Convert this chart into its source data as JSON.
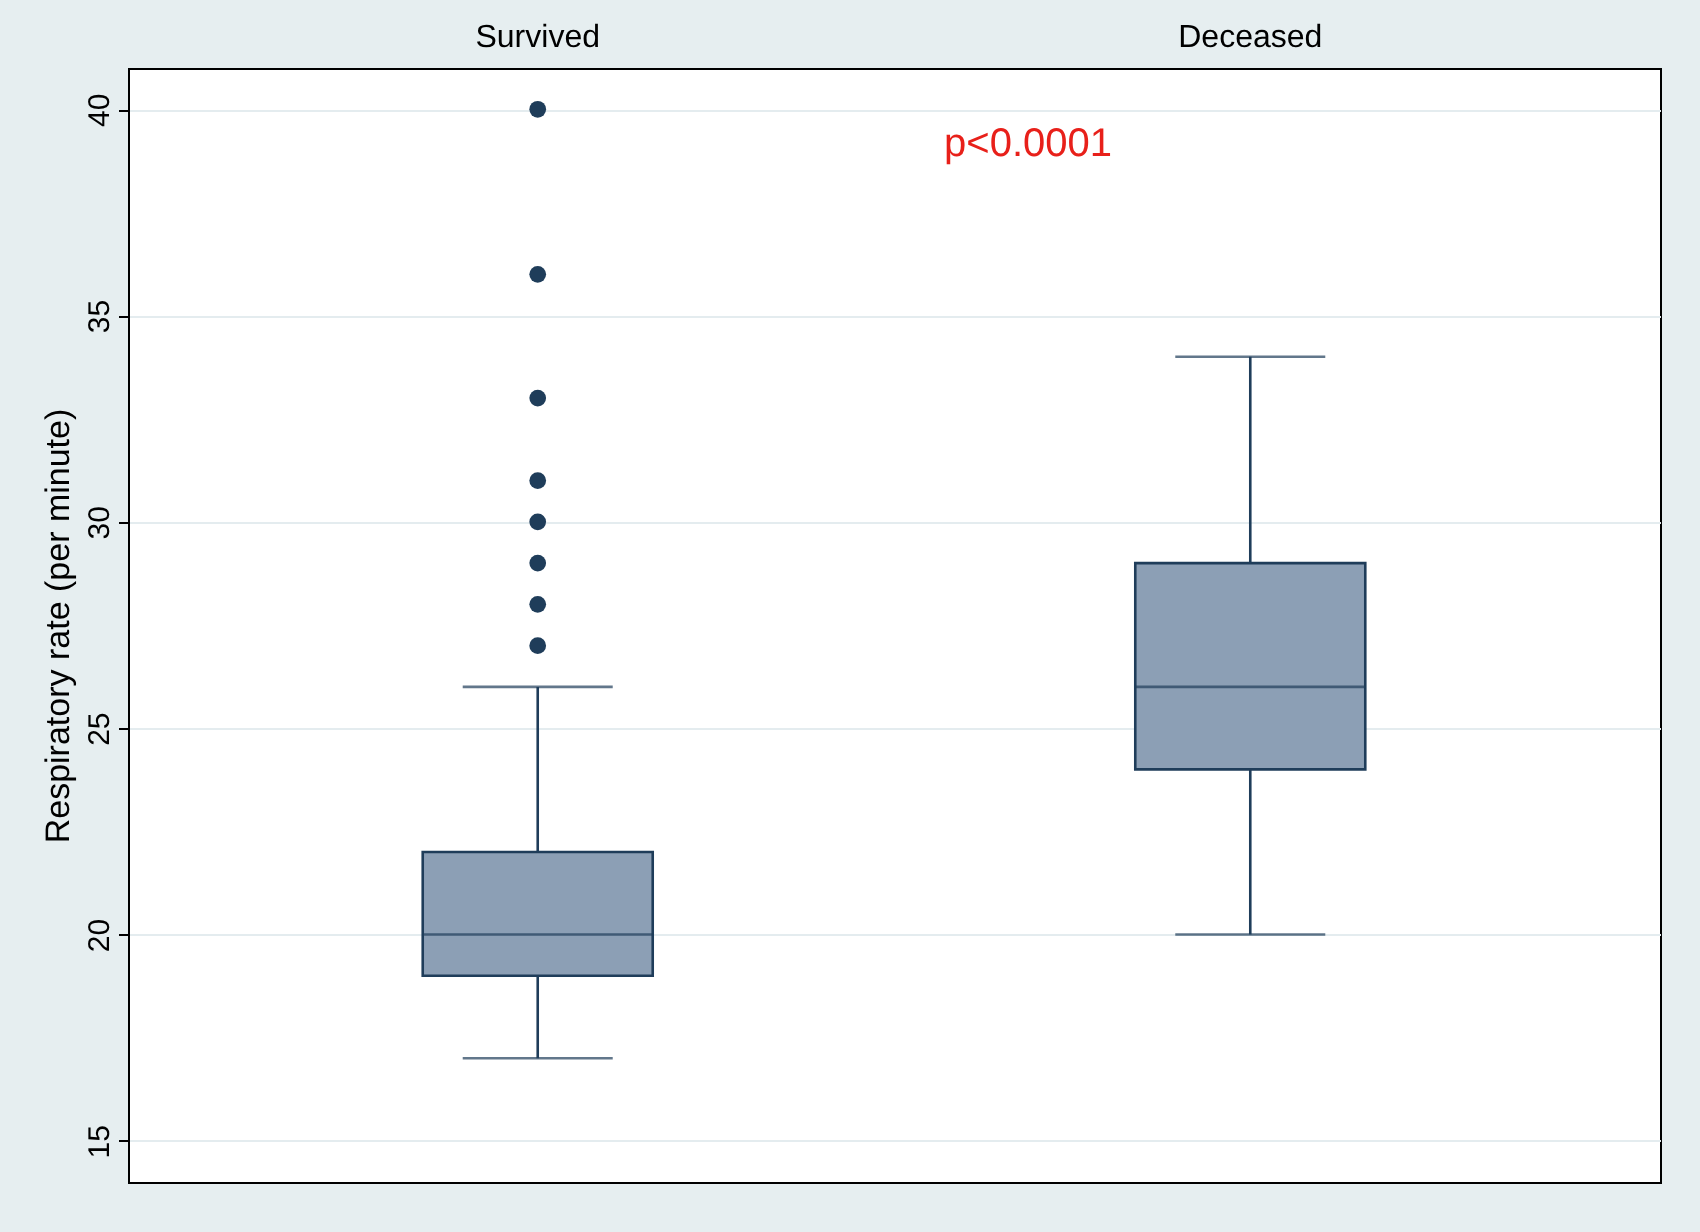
{
  "chart_data": {
    "type": "box",
    "categories": [
      "Survived",
      "Deceased"
    ],
    "ylabel": "Respiratory rate (per minute)",
    "boxes": [
      {
        "low": 17,
        "q1": 19,
        "median": 20,
        "q3": 22,
        "high": 26,
        "outliers": [
          27,
          28,
          29,
          30,
          31,
          33,
          36,
          40
        ]
      },
      {
        "low": 20,
        "q1": 24,
        "median": 26,
        "q3": 29,
        "high": 34
      }
    ],
    "color": "#8c9fb5",
    "ylim": [
      14,
      41
    ],
    "yticks": [
      15,
      20,
      25,
      30,
      35,
      40
    ],
    "grid": "y",
    "annotations": [
      "p<0.0001"
    ]
  }
}
